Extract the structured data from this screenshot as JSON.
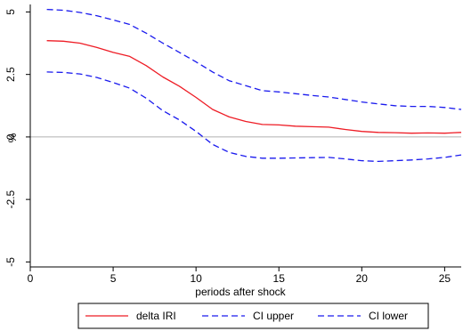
{
  "chart_data": {
    "type": "line",
    "title": "",
    "xlabel": "periods after shock",
    "ylabel": "%",
    "xlim": [
      0,
      26
    ],
    "ylim": [
      -5.2,
      5.3
    ],
    "x_ticks": [
      0,
      5,
      10,
      15,
      20,
      25
    ],
    "x_tick_labels": [
      "0",
      "5",
      "10",
      "15",
      "20",
      "25"
    ],
    "y_ticks": [
      -5,
      -2.5,
      0,
      2.5,
      5
    ],
    "y_tick_labels": [
      "-5",
      "-2.5",
      "0",
      "2.5",
      "5"
    ],
    "reference_line": {
      "y": 0,
      "color": "#b0b0b0"
    },
    "grid": false,
    "legend_position": "bottom",
    "x": [
      1,
      2,
      3,
      4,
      5,
      6,
      7,
      8,
      9,
      10,
      11,
      12,
      13,
      14,
      15,
      16,
      17,
      18,
      19,
      20,
      21,
      22,
      23,
      24,
      25,
      26
    ],
    "series": [
      {
        "name": "delta IRI",
        "color": "#ee1c25",
        "dash": "solid",
        "values": [
          3.85,
          3.83,
          3.75,
          3.58,
          3.38,
          3.22,
          2.85,
          2.4,
          2.03,
          1.58,
          1.1,
          0.8,
          0.62,
          0.5,
          0.48,
          0.43,
          0.41,
          0.39,
          0.3,
          0.22,
          0.18,
          0.17,
          0.15,
          0.16,
          0.15,
          0.18
        ]
      },
      {
        "name": "CI upper",
        "color": "#1a1aee",
        "dash": "dashed",
        "values": [
          5.1,
          5.07,
          4.98,
          4.85,
          4.68,
          4.5,
          4.15,
          3.75,
          3.38,
          3.0,
          2.6,
          2.25,
          2.05,
          1.85,
          1.8,
          1.73,
          1.66,
          1.6,
          1.5,
          1.4,
          1.32,
          1.25,
          1.22,
          1.22,
          1.18,
          1.1
        ]
      },
      {
        "name": "CI lower",
        "color": "#1a1aee",
        "dash": "dashed",
        "values": [
          2.6,
          2.58,
          2.52,
          2.38,
          2.18,
          1.95,
          1.55,
          1.05,
          0.68,
          0.22,
          -0.3,
          -0.62,
          -0.78,
          -0.85,
          -0.85,
          -0.84,
          -0.83,
          -0.82,
          -0.88,
          -0.95,
          -0.98,
          -0.95,
          -0.92,
          -0.88,
          -0.82,
          -0.72
        ]
      }
    ]
  }
}
